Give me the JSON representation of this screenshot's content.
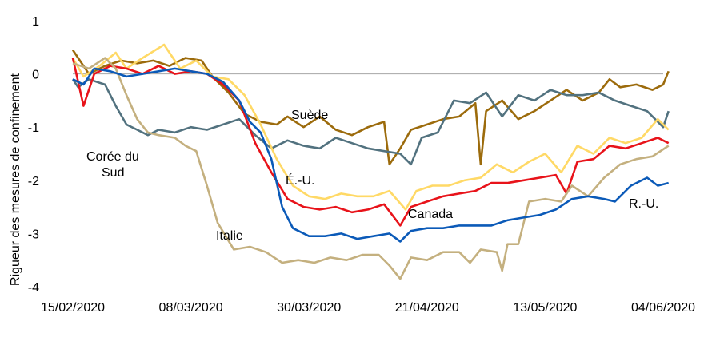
{
  "chart_data": {
    "type": "line",
    "ylabel": "Rigueur des mesures de confinement",
    "xlabel": "",
    "ylim": [
      -4,
      1
    ],
    "yticks": [
      1,
      0,
      -1,
      -2,
      -3,
      -4
    ],
    "x_dates": [
      "15/02/2020",
      "08/03/2020",
      "30/03/2020",
      "21/04/2020",
      "13/05/2020",
      "04/06/2020"
    ],
    "legend": "inline labels",
    "series": [
      {
        "name": "Suède",
        "color": "#9c6b0c",
        "points": [
          [
            "15/02/2020",
            0.45
          ],
          [
            "18/02/2020",
            0.0
          ],
          [
            "21/02/2020",
            0.15
          ],
          [
            "24/02/2020",
            0.25
          ],
          [
            "27/02/2020",
            0.2
          ],
          [
            "01/03/2020",
            0.25
          ],
          [
            "04/03/2020",
            0.15
          ],
          [
            "07/03/2020",
            0.3
          ],
          [
            "10/03/2020",
            0.25
          ],
          [
            "12/03/2020",
            -0.05
          ],
          [
            "15/03/2020",
            -0.35
          ],
          [
            "18/03/2020",
            -0.75
          ],
          [
            "21/03/2020",
            -0.9
          ],
          [
            "24/03/2020",
            -0.95
          ],
          [
            "26/03/2020",
            -0.8
          ],
          [
            "29/03/2020",
            -1.0
          ],
          [
            "01/04/2020",
            -0.8
          ],
          [
            "04/04/2020",
            -1.05
          ],
          [
            "07/04/2020",
            -1.15
          ],
          [
            "10/04/2020",
            -1.0
          ],
          [
            "13/04/2020",
            -0.9
          ],
          [
            "14/04/2020",
            -1.7
          ],
          [
            "16/04/2020",
            -1.4
          ],
          [
            "18/04/2020",
            -1.05
          ],
          [
            "21/04/2020",
            -0.95
          ],
          [
            "24/04/2020",
            -0.85
          ],
          [
            "27/04/2020",
            -0.8
          ],
          [
            "30/04/2020",
            -0.55
          ],
          [
            "01/05/2020",
            -1.7
          ],
          [
            "02/05/2020",
            -0.7
          ],
          [
            "05/05/2020",
            -0.5
          ],
          [
            "08/05/2020",
            -0.85
          ],
          [
            "11/05/2020",
            -0.7
          ],
          [
            "14/05/2020",
            -0.5
          ],
          [
            "17/05/2020",
            -0.3
          ],
          [
            "20/05/2020",
            -0.5
          ],
          [
            "23/05/2020",
            -0.35
          ],
          [
            "25/05/2020",
            -0.1
          ],
          [
            "27/05/2020",
            -0.25
          ],
          [
            "30/05/2020",
            -0.2
          ],
          [
            "02/06/2020",
            -0.3
          ],
          [
            "04/06/2020",
            -0.2
          ],
          [
            "05/06/2020",
            0.05
          ]
        ]
      },
      {
        "name": "Corée du Sud",
        "color": "#52727f",
        "points": [
          [
            "15/02/2020",
            -0.1
          ],
          [
            "16/02/2020",
            -0.25
          ],
          [
            "18/02/2020",
            -0.1
          ],
          [
            "21/02/2020",
            -0.2
          ],
          [
            "23/02/2020",
            -0.6
          ],
          [
            "25/02/2020",
            -0.95
          ],
          [
            "27/02/2020",
            -1.05
          ],
          [
            "29/02/2020",
            -1.15
          ],
          [
            "02/03/2020",
            -1.05
          ],
          [
            "05/03/2020",
            -1.1
          ],
          [
            "08/03/2020",
            -1.0
          ],
          [
            "11/03/2020",
            -1.05
          ],
          [
            "14/03/2020",
            -0.95
          ],
          [
            "17/03/2020",
            -0.85
          ],
          [
            "20/03/2020",
            -1.15
          ],
          [
            "23/03/2020",
            -1.4
          ],
          [
            "26/03/2020",
            -1.25
          ],
          [
            "29/03/2020",
            -1.35
          ],
          [
            "01/04/2020",
            -1.4
          ],
          [
            "04/04/2020",
            -1.2
          ],
          [
            "07/04/2020",
            -1.3
          ],
          [
            "10/04/2020",
            -1.4
          ],
          [
            "13/04/2020",
            -1.45
          ],
          [
            "16/04/2020",
            -1.5
          ],
          [
            "18/04/2020",
            -1.7
          ],
          [
            "20/04/2020",
            -1.2
          ],
          [
            "23/04/2020",
            -1.1
          ],
          [
            "26/04/2020",
            -0.5
          ],
          [
            "29/04/2020",
            -0.55
          ],
          [
            "02/05/2020",
            -0.35
          ],
          [
            "05/05/2020",
            -0.8
          ],
          [
            "08/05/2020",
            -0.4
          ],
          [
            "11/05/2020",
            -0.5
          ],
          [
            "14/05/2020",
            -0.3
          ],
          [
            "17/05/2020",
            -0.4
          ],
          [
            "20/05/2020",
            -0.4
          ],
          [
            "23/05/2020",
            -0.35
          ],
          [
            "26/05/2020",
            -0.5
          ],
          [
            "29/05/2020",
            -0.6
          ],
          [
            "01/06/2020",
            -0.7
          ],
          [
            "04/06/2020",
            -1.0
          ],
          [
            "05/06/2020",
            -0.7
          ]
        ]
      },
      {
        "name": "É.-U.",
        "color": "#ffd966",
        "points": [
          [
            "15/02/2020",
            0.3
          ],
          [
            "17/02/2020",
            -0.05
          ],
          [
            "20/02/2020",
            0.15
          ],
          [
            "23/02/2020",
            0.4
          ],
          [
            "25/02/2020",
            0.1
          ],
          [
            "28/02/2020",
            0.3
          ],
          [
            "03/03/2020",
            0.55
          ],
          [
            "06/03/2020",
            0.1
          ],
          [
            "09/03/2020",
            0.25
          ],
          [
            "12/03/2020",
            -0.05
          ],
          [
            "15/03/2020",
            -0.1
          ],
          [
            "18/03/2020",
            -0.4
          ],
          [
            "21/03/2020",
            -0.95
          ],
          [
            "24/03/2020",
            -1.6
          ],
          [
            "27/03/2020",
            -2.1
          ],
          [
            "30/03/2020",
            -2.3
          ],
          [
            "02/04/2020",
            -2.35
          ],
          [
            "05/04/2020",
            -2.25
          ],
          [
            "08/04/2020",
            -2.3
          ],
          [
            "11/04/2020",
            -2.3
          ],
          [
            "14/04/2020",
            -2.2
          ],
          [
            "17/04/2020",
            -2.55
          ],
          [
            "19/04/2020",
            -2.2
          ],
          [
            "22/04/2020",
            -2.1
          ],
          [
            "25/04/2020",
            -2.1
          ],
          [
            "28/04/2020",
            -2.0
          ],
          [
            "01/05/2020",
            -1.95
          ],
          [
            "04/05/2020",
            -1.7
          ],
          [
            "07/05/2020",
            -1.85
          ],
          [
            "10/05/2020",
            -1.65
          ],
          [
            "13/05/2020",
            -1.5
          ],
          [
            "16/05/2020",
            -1.85
          ],
          [
            "19/05/2020",
            -1.35
          ],
          [
            "22/05/2020",
            -1.5
          ],
          [
            "25/05/2020",
            -1.2
          ],
          [
            "28/05/2020",
            -1.3
          ],
          [
            "31/05/2020",
            -1.2
          ],
          [
            "03/06/2020",
            -0.85
          ],
          [
            "05/06/2020",
            -1.05
          ]
        ]
      },
      {
        "name": "Canada",
        "color": "#e8131a",
        "points": [
          [
            "15/02/2020",
            0.3
          ],
          [
            "17/02/2020",
            -0.6
          ],
          [
            "19/02/2020",
            0.0
          ],
          [
            "22/02/2020",
            0.15
          ],
          [
            "25/02/2020",
            0.1
          ],
          [
            "28/02/2020",
            0.0
          ],
          [
            "02/03/2020",
            0.15
          ],
          [
            "05/03/2020",
            0.0
          ],
          [
            "08/03/2020",
            0.05
          ],
          [
            "11/03/2020",
            0.0
          ],
          [
            "14/03/2020",
            -0.2
          ],
          [
            "17/03/2020",
            -0.5
          ],
          [
            "20/03/2020",
            -1.3
          ],
          [
            "23/03/2020",
            -1.85
          ],
          [
            "26/03/2020",
            -2.35
          ],
          [
            "29/03/2020",
            -2.5
          ],
          [
            "01/04/2020",
            -2.55
          ],
          [
            "04/04/2020",
            -2.5
          ],
          [
            "07/04/2020",
            -2.6
          ],
          [
            "10/04/2020",
            -2.55
          ],
          [
            "13/04/2020",
            -2.45
          ],
          [
            "16/04/2020",
            -2.85
          ],
          [
            "18/04/2020",
            -2.5
          ],
          [
            "21/04/2020",
            -2.4
          ],
          [
            "24/04/2020",
            -2.3
          ],
          [
            "27/04/2020",
            -2.25
          ],
          [
            "30/04/2020",
            -2.2
          ],
          [
            "03/05/2020",
            -2.05
          ],
          [
            "06/05/2020",
            -2.05
          ],
          [
            "09/05/2020",
            -2.0
          ],
          [
            "12/05/2020",
            -1.95
          ],
          [
            "15/05/2020",
            -1.9
          ],
          [
            "17/05/2020",
            -2.25
          ],
          [
            "19/05/2020",
            -1.65
          ],
          [
            "22/05/2020",
            -1.6
          ],
          [
            "25/05/2020",
            -1.35
          ],
          [
            "28/05/2020",
            -1.4
          ],
          [
            "31/05/2020",
            -1.3
          ],
          [
            "03/06/2020",
            -1.2
          ],
          [
            "05/06/2020",
            -1.3
          ]
        ]
      },
      {
        "name": "Italie",
        "color": "#c4b07f",
        "points": [
          [
            "15/02/2020",
            0.2
          ],
          [
            "18/02/2020",
            0.1
          ],
          [
            "21/02/2020",
            0.3
          ],
          [
            "23/02/2020",
            0.1
          ],
          [
            "25/02/2020",
            -0.4
          ],
          [
            "27/02/2020",
            -0.85
          ],
          [
            "29/02/2020",
            -1.1
          ],
          [
            "02/03/2020",
            -1.15
          ],
          [
            "05/03/2020",
            -1.2
          ],
          [
            "07/03/2020",
            -1.35
          ],
          [
            "09/03/2020",
            -1.45
          ],
          [
            "11/03/2020",
            -2.1
          ],
          [
            "13/03/2020",
            -2.8
          ],
          [
            "16/03/2020",
            -3.3
          ],
          [
            "19/03/2020",
            -3.25
          ],
          [
            "22/03/2020",
            -3.35
          ],
          [
            "25/03/2020",
            -3.55
          ],
          [
            "28/03/2020",
            -3.5
          ],
          [
            "31/03/2020",
            -3.55
          ],
          [
            "03/04/2020",
            -3.45
          ],
          [
            "06/04/2020",
            -3.5
          ],
          [
            "09/04/2020",
            -3.4
          ],
          [
            "12/04/2020",
            -3.4
          ],
          [
            "14/04/2020",
            -3.6
          ],
          [
            "16/04/2020",
            -3.85
          ],
          [
            "18/04/2020",
            -3.45
          ],
          [
            "21/04/2020",
            -3.5
          ],
          [
            "24/04/2020",
            -3.35
          ],
          [
            "27/04/2020",
            -3.35
          ],
          [
            "29/04/2020",
            -3.55
          ],
          [
            "01/05/2020",
            -3.3
          ],
          [
            "04/05/2020",
            -3.35
          ],
          [
            "05/05/2020",
            -3.7
          ],
          [
            "06/05/2020",
            -3.2
          ],
          [
            "08/05/2020",
            -3.2
          ],
          [
            "10/05/2020",
            -2.4
          ],
          [
            "13/05/2020",
            -2.35
          ],
          [
            "16/05/2020",
            -2.4
          ],
          [
            "18/05/2020",
            -2.1
          ],
          [
            "21/05/2020",
            -2.3
          ],
          [
            "24/05/2020",
            -1.95
          ],
          [
            "27/05/2020",
            -1.7
          ],
          [
            "30/05/2020",
            -1.6
          ],
          [
            "02/06/2020",
            -1.55
          ],
          [
            "05/06/2020",
            -1.35
          ]
        ]
      },
      {
        "name": "R.-U.",
        "color": "#0b5ab8",
        "points": [
          [
            "15/02/2020",
            -0.1
          ],
          [
            "17/02/2020",
            -0.2
          ],
          [
            "19/02/2020",
            0.1
          ],
          [
            "22/02/2020",
            0.05
          ],
          [
            "25/02/2020",
            -0.05
          ],
          [
            "28/02/2020",
            0.0
          ],
          [
            "02/03/2020",
            0.05
          ],
          [
            "05/03/2020",
            0.1
          ],
          [
            "08/03/2020",
            0.05
          ],
          [
            "11/03/2020",
            0.0
          ],
          [
            "14/03/2020",
            -0.15
          ],
          [
            "17/03/2020",
            -0.5
          ],
          [
            "19/03/2020",
            -0.9
          ],
          [
            "21/03/2020",
            -1.1
          ],
          [
            "23/03/2020",
            -1.6
          ],
          [
            "25/03/2020",
            -2.5
          ],
          [
            "27/03/2020",
            -2.9
          ],
          [
            "30/03/2020",
            -3.05
          ],
          [
            "02/04/2020",
            -3.05
          ],
          [
            "05/04/2020",
            -3.0
          ],
          [
            "08/04/2020",
            -3.1
          ],
          [
            "11/04/2020",
            -3.05
          ],
          [
            "14/04/2020",
            -3.0
          ],
          [
            "16/04/2020",
            -3.15
          ],
          [
            "18/04/2020",
            -2.95
          ],
          [
            "21/04/2020",
            -2.9
          ],
          [
            "24/04/2020",
            -2.9
          ],
          [
            "27/04/2020",
            -2.85
          ],
          [
            "30/04/2020",
            -2.85
          ],
          [
            "03/05/2020",
            -2.85
          ],
          [
            "06/05/2020",
            -2.75
          ],
          [
            "09/05/2020",
            -2.7
          ],
          [
            "12/05/2020",
            -2.65
          ],
          [
            "15/05/2020",
            -2.55
          ],
          [
            "18/05/2020",
            -2.35
          ],
          [
            "21/05/2020",
            -2.3
          ],
          [
            "24/05/2020",
            -2.35
          ],
          [
            "26/05/2020",
            -2.4
          ],
          [
            "29/05/2020",
            -2.1
          ],
          [
            "01/06/2020",
            -1.95
          ],
          [
            "03/06/2020",
            -2.1
          ],
          [
            "05/06/2020",
            -2.05
          ]
        ]
      }
    ],
    "annotations": [
      {
        "text": "Suède",
        "series": "Suède"
      },
      {
        "text": "Corée du",
        "series": "Corée du Sud"
      },
      {
        "text": "Sud",
        "series": "Corée du Sud"
      },
      {
        "text": "É.-U.",
        "series": "É.-U."
      },
      {
        "text": "Canada",
        "series": "Canada"
      },
      {
        "text": "Italie",
        "series": "Italie"
      },
      {
        "text": "R.-U.",
        "series": "R.-U."
      }
    ]
  }
}
